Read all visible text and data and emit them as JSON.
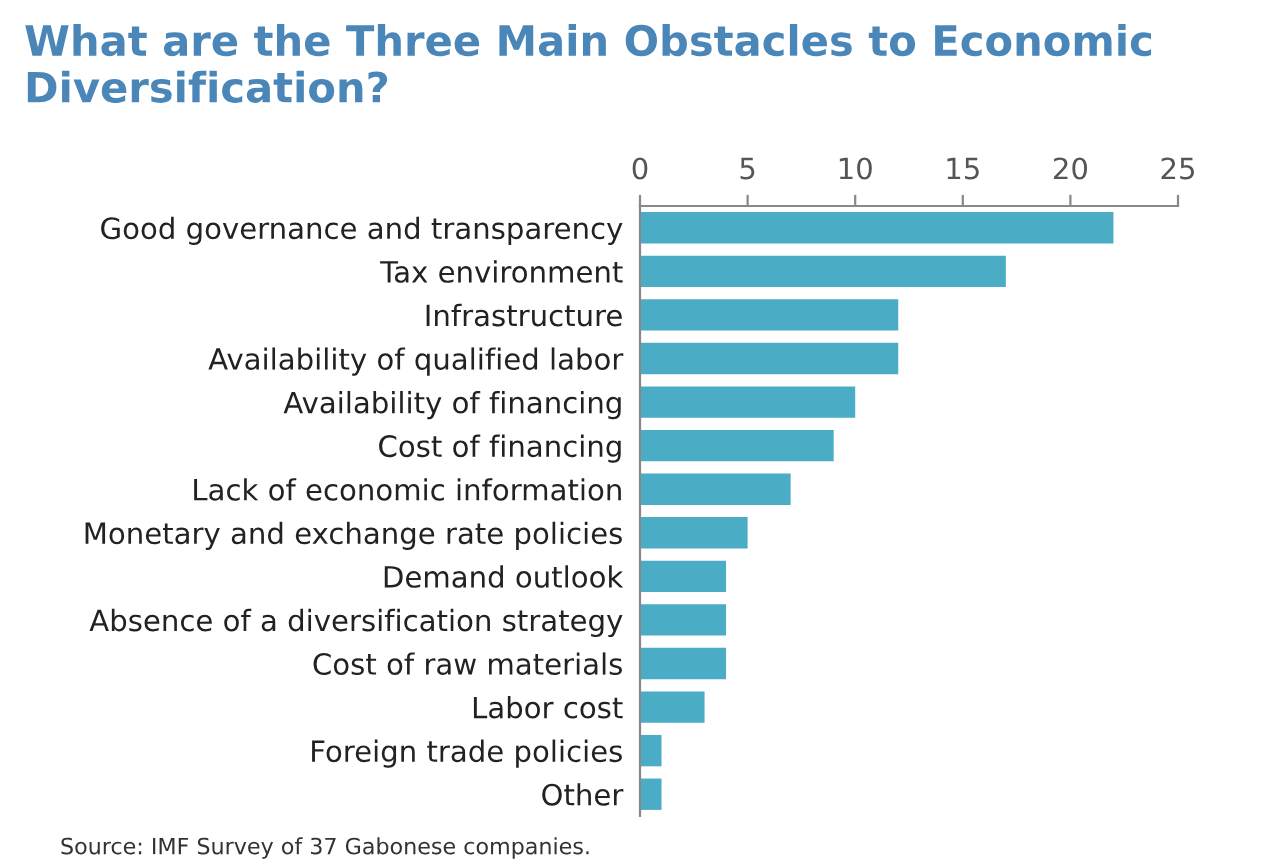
{
  "chart_data": {
    "type": "bar",
    "orientation": "horizontal",
    "title": "What are the Three Main Obstacles to Economic\nDiversification?",
    "categories": [
      "Good governance and transparency",
      "Tax environment",
      "Infrastructure",
      "Availability of qualified labor",
      "Availability of financing",
      "Cost of financing",
      "Lack of economic information",
      "Monetary and exchange rate policies",
      "Demand outlook",
      "Absence of a diversification strategy",
      "Cost of raw materials",
      "Labor cost",
      "Foreign trade policies",
      "Other"
    ],
    "values": [
      22,
      17,
      12,
      12,
      10,
      9,
      7,
      5,
      4,
      4,
      4,
      3,
      1,
      1
    ],
    "color": "#4bacc6",
    "xlim": [
      0,
      25
    ],
    "xticks": [
      0,
      5,
      10,
      15,
      20,
      25
    ],
    "grid": false,
    "annotations": [
      "Source: IMF Survey of 37 Gabonese companies."
    ]
  }
}
